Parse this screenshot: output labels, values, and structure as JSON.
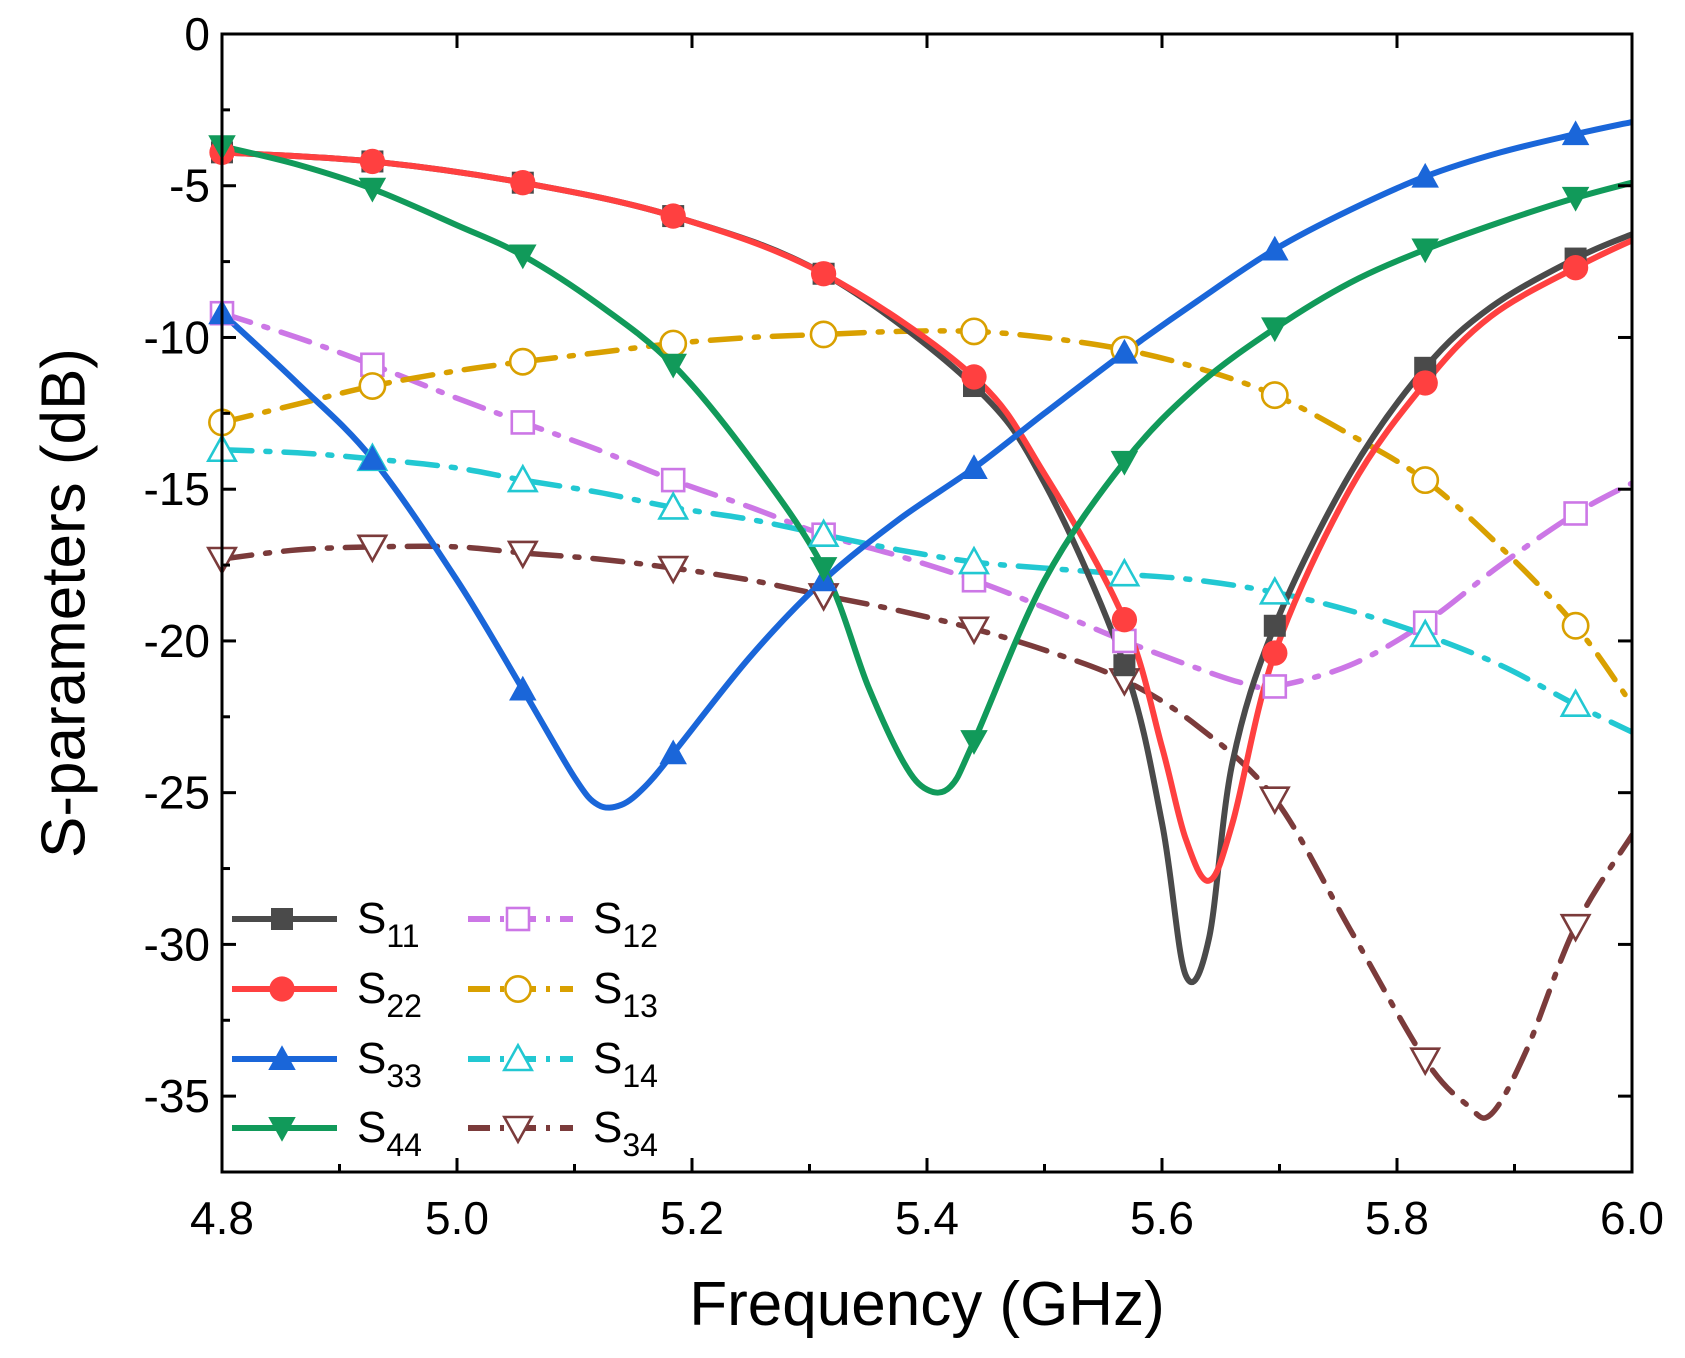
{
  "chart_data": {
    "type": "line",
    "xlabel": "Frequency (GHz)",
    "ylabel": "S-parameters (dB)",
    "xlim": [
      4.8,
      6.0
    ],
    "ylim": [
      -37.5,
      0
    ],
    "xticks": [
      4.8,
      5.0,
      5.2,
      5.4,
      5.6,
      5.8,
      6.0
    ],
    "xtick_labels": [
      "4.8",
      "5.0",
      "5.2",
      "5.4",
      "5.6",
      "5.8",
      "6.0"
    ],
    "yticks": [
      0,
      -5,
      -10,
      -15,
      -20,
      -25,
      -30,
      -35
    ],
    "ytick_labels": [
      "0",
      "-5",
      "-10",
      "-15",
      "-20",
      "-25",
      "-30",
      "-35"
    ],
    "marker_x": [
      4.8,
      4.928,
      5.056,
      5.184,
      5.312,
      5.44,
      5.568,
      5.696,
      5.824,
      5.952
    ],
    "legend_position": "bottom-left",
    "series": [
      {
        "name": "S11",
        "label_main": "S",
        "label_sub": "11",
        "color": "#4a4a4a",
        "dash": "solid",
        "marker": "square",
        "filled": true,
        "x": [
          4.8,
          4.928,
          5.056,
          5.184,
          5.312,
          5.44,
          5.5,
          5.568,
          5.6,
          5.62,
          5.64,
          5.66,
          5.696,
          5.76,
          5.824,
          5.88,
          5.952,
          6.0
        ],
        "y": [
          -3.9,
          -4.2,
          -4.9,
          -6.0,
          -7.9,
          -11.6,
          -14.8,
          -20.8,
          -26.0,
          -31.0,
          -29.8,
          -24.0,
          -19.5,
          -14.5,
          -11.0,
          -9.0,
          -7.4,
          -6.6
        ],
        "marker_values": [
          -3.9,
          -4.2,
          -4.9,
          -6.0,
          -7.9,
          -11.6,
          -20.8,
          -19.5,
          -11.0,
          -7.4
        ]
      },
      {
        "name": "S22",
        "label_main": "S",
        "label_sub": "22",
        "color": "#ff4040",
        "dash": "solid",
        "marker": "circle",
        "filled": true,
        "x": [
          4.8,
          4.928,
          5.056,
          5.184,
          5.312,
          5.44,
          5.5,
          5.568,
          5.6,
          5.62,
          5.64,
          5.66,
          5.696,
          5.76,
          5.824,
          5.88,
          5.952,
          6.0
        ],
        "y": [
          -3.9,
          -4.2,
          -4.9,
          -6.0,
          -7.9,
          -11.3,
          -14.5,
          -19.3,
          -23.5,
          -26.5,
          -27.9,
          -26.0,
          -20.4,
          -15.0,
          -11.5,
          -9.3,
          -7.7,
          -6.8
        ],
        "marker_values": [
          -3.9,
          -4.2,
          -4.9,
          -6.0,
          -7.9,
          -11.3,
          -19.3,
          -20.4,
          -11.5,
          -7.7
        ]
      },
      {
        "name": "S33",
        "label_main": "S",
        "label_sub": "33",
        "color": "#1a66d9",
        "dash": "solid",
        "marker": "triangle-up",
        "filled": true,
        "x": [
          4.8,
          4.864,
          4.928,
          5.0,
          5.056,
          5.1,
          5.12,
          5.14,
          5.16,
          5.184,
          5.25,
          5.312,
          5.376,
          5.44,
          5.5,
          5.568,
          5.63,
          5.696,
          5.76,
          5.824,
          5.888,
          5.952,
          6.0
        ],
        "y": [
          -9.2,
          -11.5,
          -14.0,
          -18.0,
          -21.6,
          -24.5,
          -25.4,
          -25.4,
          -24.8,
          -23.7,
          -20.5,
          -18.0,
          -16.0,
          -14.3,
          -12.5,
          -10.5,
          -8.8,
          -7.1,
          -5.8,
          -4.7,
          -3.9,
          -3.3,
          -2.9
        ],
        "marker_values": [
          -9.2,
          -14.0,
          -21.6,
          -23.7,
          -18.0,
          -14.3,
          -10.5,
          -7.1,
          -4.7,
          -3.3
        ]
      },
      {
        "name": "S44",
        "label_main": "S",
        "label_sub": "44",
        "color": "#119a5a",
        "dash": "solid",
        "marker": "triangle-down",
        "filled": true,
        "x": [
          4.8,
          4.864,
          4.928,
          5.0,
          5.056,
          5.12,
          5.184,
          5.25,
          5.312,
          5.35,
          5.38,
          5.4,
          5.42,
          5.44,
          5.5,
          5.568,
          5.63,
          5.696,
          5.76,
          5.824,
          5.888,
          5.952,
          6.0
        ],
        "y": [
          -3.7,
          -4.3,
          -5.1,
          -6.3,
          -7.3,
          -8.9,
          -10.9,
          -14.0,
          -17.6,
          -21.5,
          -24.0,
          -24.9,
          -24.8,
          -23.3,
          -18.0,
          -14.1,
          -11.6,
          -9.7,
          -8.2,
          -7.1,
          -6.2,
          -5.4,
          -4.9
        ],
        "marker_values": [
          -3.7,
          -5.1,
          -7.3,
          -10.9,
          -17.6,
          -23.3,
          -14.1,
          -9.7,
          -7.1,
          -5.4
        ]
      },
      {
        "name": "S12",
        "label_main": "S",
        "label_sub": "12",
        "color": "#cc77e6",
        "dash": "dash-dot",
        "marker": "square",
        "filled": false,
        "x": [
          4.8,
          4.864,
          4.928,
          5.0,
          5.056,
          5.12,
          5.184,
          5.25,
          5.312,
          5.376,
          5.44,
          5.5,
          5.568,
          5.63,
          5.67,
          5.696,
          5.76,
          5.824,
          5.888,
          5.952,
          6.0
        ],
        "y": [
          -9.2,
          -10.0,
          -10.9,
          -12.0,
          -12.8,
          -13.7,
          -14.7,
          -15.6,
          -16.5,
          -17.2,
          -18.0,
          -18.9,
          -20.0,
          -20.9,
          -21.4,
          -21.5,
          -20.8,
          -19.4,
          -17.5,
          -15.8,
          -14.8
        ],
        "marker_values": [
          -9.2,
          -10.9,
          -12.8,
          -14.7,
          -16.5,
          -18.0,
          -20.0,
          -21.5,
          -19.4,
          -15.8
        ]
      },
      {
        "name": "S13",
        "label_main": "S",
        "label_sub": "13",
        "color": "#d9a000",
        "dash": "dash-dot",
        "marker": "circle",
        "filled": false,
        "x": [
          4.8,
          4.864,
          4.928,
          5.0,
          5.056,
          5.12,
          5.184,
          5.25,
          5.312,
          5.376,
          5.44,
          5.5,
          5.568,
          5.63,
          5.696,
          5.76,
          5.824,
          5.888,
          5.952,
          6.0
        ],
        "y": [
          -12.8,
          -12.2,
          -11.6,
          -11.1,
          -10.8,
          -10.5,
          -10.2,
          -10.0,
          -9.9,
          -9.8,
          -9.8,
          -10.0,
          -10.4,
          -11.0,
          -11.9,
          -13.2,
          -14.7,
          -16.9,
          -19.5,
          -22.1
        ],
        "marker_values": [
          -12.8,
          -11.6,
          -10.8,
          -10.2,
          -9.9,
          -9.8,
          -10.4,
          -11.9,
          -14.7,
          -19.5
        ]
      },
      {
        "name": "S14",
        "label_main": "S",
        "label_sub": "14",
        "color": "#22c8d2",
        "dash": "dash-dot",
        "marker": "triangle-up",
        "filled": false,
        "x": [
          4.8,
          4.864,
          4.928,
          5.0,
          5.056,
          5.12,
          5.184,
          5.25,
          5.312,
          5.376,
          5.44,
          5.5,
          5.568,
          5.63,
          5.696,
          5.76,
          5.824,
          5.888,
          5.952,
          6.0
        ],
        "y": [
          -13.7,
          -13.8,
          -14.0,
          -14.3,
          -14.7,
          -15.1,
          -15.6,
          -16.0,
          -16.5,
          -17.0,
          -17.4,
          -17.6,
          -17.8,
          -18.0,
          -18.4,
          -19.0,
          -19.8,
          -20.8,
          -22.1,
          -23.0
        ],
        "marker_values": [
          -13.7,
          -14.0,
          -14.7,
          -15.6,
          -16.5,
          -17.4,
          -17.8,
          -18.4,
          -19.8,
          -22.1
        ]
      },
      {
        "name": "S34",
        "label_main": "S",
        "label_sub": "34",
        "color": "#7b3b3b",
        "dash": "dash-dot",
        "marker": "triangle-down",
        "filled": false,
        "x": [
          4.8,
          4.864,
          4.928,
          5.0,
          5.056,
          5.12,
          5.184,
          5.25,
          5.312,
          5.376,
          5.44,
          5.5,
          5.568,
          5.63,
          5.696,
          5.76,
          5.824,
          5.86,
          5.88,
          5.91,
          5.952,
          6.0
        ],
        "y": [
          -17.3,
          -17.0,
          -16.9,
          -16.9,
          -17.1,
          -17.3,
          -17.6,
          -18.0,
          -18.5,
          -19.0,
          -19.6,
          -20.3,
          -21.3,
          -22.8,
          -25.2,
          -29.5,
          -33.8,
          -35.3,
          -35.6,
          -33.5,
          -29.4,
          -26.4
        ],
        "marker_values": [
          -17.3,
          -16.9,
          -17.1,
          -17.6,
          -18.5,
          -19.6,
          -21.3,
          -25.2,
          -33.8,
          -29.4
        ]
      }
    ]
  }
}
